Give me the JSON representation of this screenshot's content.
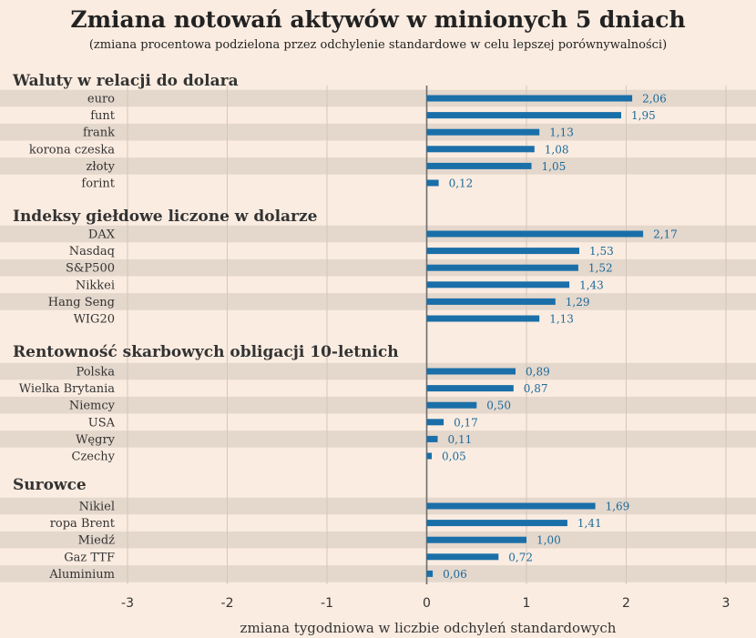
{
  "colors": {
    "background": "#fbece1",
    "stripe": "#e4d7cc",
    "bar": "#1a6fa8",
    "value_text": "#1a6a9a",
    "grid": "#d3c6bc",
    "zero_line": "#6e6e6e"
  },
  "chart_data": {
    "type": "bar",
    "orientation": "horizontal",
    "title": "Zmiana notowań aktywów w minionych 5 dniach",
    "subtitle": "(zmiana procentowa podzielona przez odchylenie standardowe w celu lepszej porównywalności)",
    "xlabel": "zmiana tygodniowa w liczbie odchyleń standardowych",
    "xlim": [
      -3,
      3
    ],
    "xticks": [
      -3,
      -2,
      -1,
      0,
      1,
      2,
      3
    ],
    "grid": true,
    "groups": [
      {
        "title": "Waluty w relacji do dolara",
        "items": [
          {
            "label": "euro",
            "value": 2.06,
            "value_text": "2,06"
          },
          {
            "label": "funt",
            "value": 1.95,
            "value_text": "1,95"
          },
          {
            "label": "frank",
            "value": 1.13,
            "value_text": "1,13"
          },
          {
            "label": "korona czeska",
            "value": 1.08,
            "value_text": "1,08"
          },
          {
            "label": "złoty",
            "value": 1.05,
            "value_text": "1,05"
          },
          {
            "label": "forint",
            "value": 0.12,
            "value_text": "0,12"
          }
        ]
      },
      {
        "title": "Indeksy giełdowe liczone w dolarze",
        "items": [
          {
            "label": "DAX",
            "value": 2.17,
            "value_text": "2,17"
          },
          {
            "label": "Nasdaq",
            "value": 1.53,
            "value_text": "1,53"
          },
          {
            "label": "S&P500",
            "value": 1.52,
            "value_text": "1,52"
          },
          {
            "label": "Nikkei",
            "value": 1.43,
            "value_text": "1,43"
          },
          {
            "label": "Hang Seng",
            "value": 1.29,
            "value_text": "1,29"
          },
          {
            "label": "WIG20",
            "value": 1.13,
            "value_text": "1,13"
          }
        ]
      },
      {
        "title": "Rentowność skarbowych obligacji 10-letnich",
        "items": [
          {
            "label": "Polska",
            "value": 0.89,
            "value_text": "0,89"
          },
          {
            "label": "Wielka Brytania",
            "value": 0.87,
            "value_text": "0,87"
          },
          {
            "label": "Niemcy",
            "value": 0.5,
            "value_text": "0,50"
          },
          {
            "label": "USA",
            "value": 0.17,
            "value_text": "0,17"
          },
          {
            "label": "Węgry",
            "value": 0.11,
            "value_text": "0,11"
          },
          {
            "label": "Czechy",
            "value": 0.05,
            "value_text": "0,05"
          }
        ]
      },
      {
        "title": "Surowce",
        "items": [
          {
            "label": "Nikiel",
            "value": 1.69,
            "value_text": "1,69"
          },
          {
            "label": "ropa Brent",
            "value": 1.41,
            "value_text": "1,41"
          },
          {
            "label": "Miedź",
            "value": 1.0,
            "value_text": "1,00"
          },
          {
            "label": "Gaz TTF",
            "value": 0.72,
            "value_text": "0,72"
          },
          {
            "label": "Aluminium",
            "value": 0.06,
            "value_text": "0,06"
          }
        ]
      }
    ]
  }
}
